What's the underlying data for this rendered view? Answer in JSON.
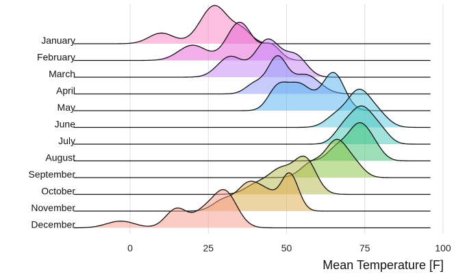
{
  "chart_data": {
    "type": "ridgeline",
    "title": "",
    "xlabel": "Mean Temperature [F]",
    "ylabel": "",
    "xlim": [
      -18,
      96
    ],
    "x_ticks": [
      0,
      25,
      50,
      75,
      100
    ],
    "grid": "vertical",
    "series": [
      {
        "name": "January",
        "color": "#f77fbf",
        "peaks": [
          [
            27,
            1.0,
            4.5
          ],
          [
            10,
            0.28,
            4.0
          ],
          [
            36,
            0.3,
            3.0
          ]
        ]
      },
      {
        "name": "February",
        "color": "#e65fd6",
        "peaks": [
          [
            35,
            1.0,
            4.0
          ],
          [
            20,
            0.4,
            4.5
          ],
          [
            45,
            0.4,
            3.0
          ]
        ]
      },
      {
        "name": "March",
        "color": "#c684f8",
        "peaks": [
          [
            44,
            1.0,
            4.0
          ],
          [
            32,
            0.55,
            4.0
          ],
          [
            53,
            0.55,
            3.5
          ]
        ]
      },
      {
        "name": "April",
        "color": "#8f98f8",
        "peaks": [
          [
            47,
            1.0,
            3.0
          ],
          [
            56,
            0.55,
            4.5
          ],
          [
            40,
            0.3,
            3.0
          ]
        ]
      },
      {
        "name": "May",
        "color": "#54aff0",
        "peaks": [
          [
            65,
            1.0,
            3.5
          ],
          [
            54,
            0.7,
            4.0
          ],
          [
            47,
            0.55,
            3.0
          ]
        ]
      },
      {
        "name": "June",
        "color": "#5bc7e1",
        "peaks": [
          [
            73,
            1.0,
            3.5
          ],
          [
            79,
            0.4,
            3.5
          ],
          [
            66,
            0.35,
            3.5
          ]
        ]
      },
      {
        "name": "July",
        "color": "#44c5b5",
        "peaks": [
          [
            74,
            1.0,
            3.5
          ],
          [
            68,
            0.4,
            3.0
          ],
          [
            80,
            0.35,
            3.0
          ]
        ]
      },
      {
        "name": "August",
        "color": "#39bf74",
        "peaks": [
          [
            73,
            1.0,
            3.5
          ],
          [
            66,
            0.35,
            3.0
          ],
          [
            78,
            0.3,
            3.0
          ]
        ]
      },
      {
        "name": "September",
        "color": "#88c23e",
        "peaks": [
          [
            66,
            1.0,
            3.5
          ],
          [
            58,
            0.4,
            3.5
          ],
          [
            72,
            0.3,
            3.0
          ]
        ]
      },
      {
        "name": "October",
        "color": "#b6b64a",
        "peaks": [
          [
            56,
            1.0,
            3.5
          ],
          [
            48,
            0.7,
            4.0
          ],
          [
            40,
            0.25,
            3.5
          ]
        ]
      },
      {
        "name": "November",
        "color": "#dfaa47",
        "peaks": [
          [
            51,
            1.0,
            2.8
          ],
          [
            38,
            0.72,
            3.5
          ],
          [
            30,
            0.3,
            3.5
          ],
          [
            44,
            0.4,
            3.0
          ]
        ]
      },
      {
        "name": "December",
        "color": "#f59a8a",
        "peaks": [
          [
            30,
            1.0,
            4.0
          ],
          [
            15,
            0.52,
            3.5
          ],
          [
            -3,
            0.18,
            4.5
          ],
          [
            23,
            0.3,
            3.0
          ]
        ]
      }
    ]
  }
}
